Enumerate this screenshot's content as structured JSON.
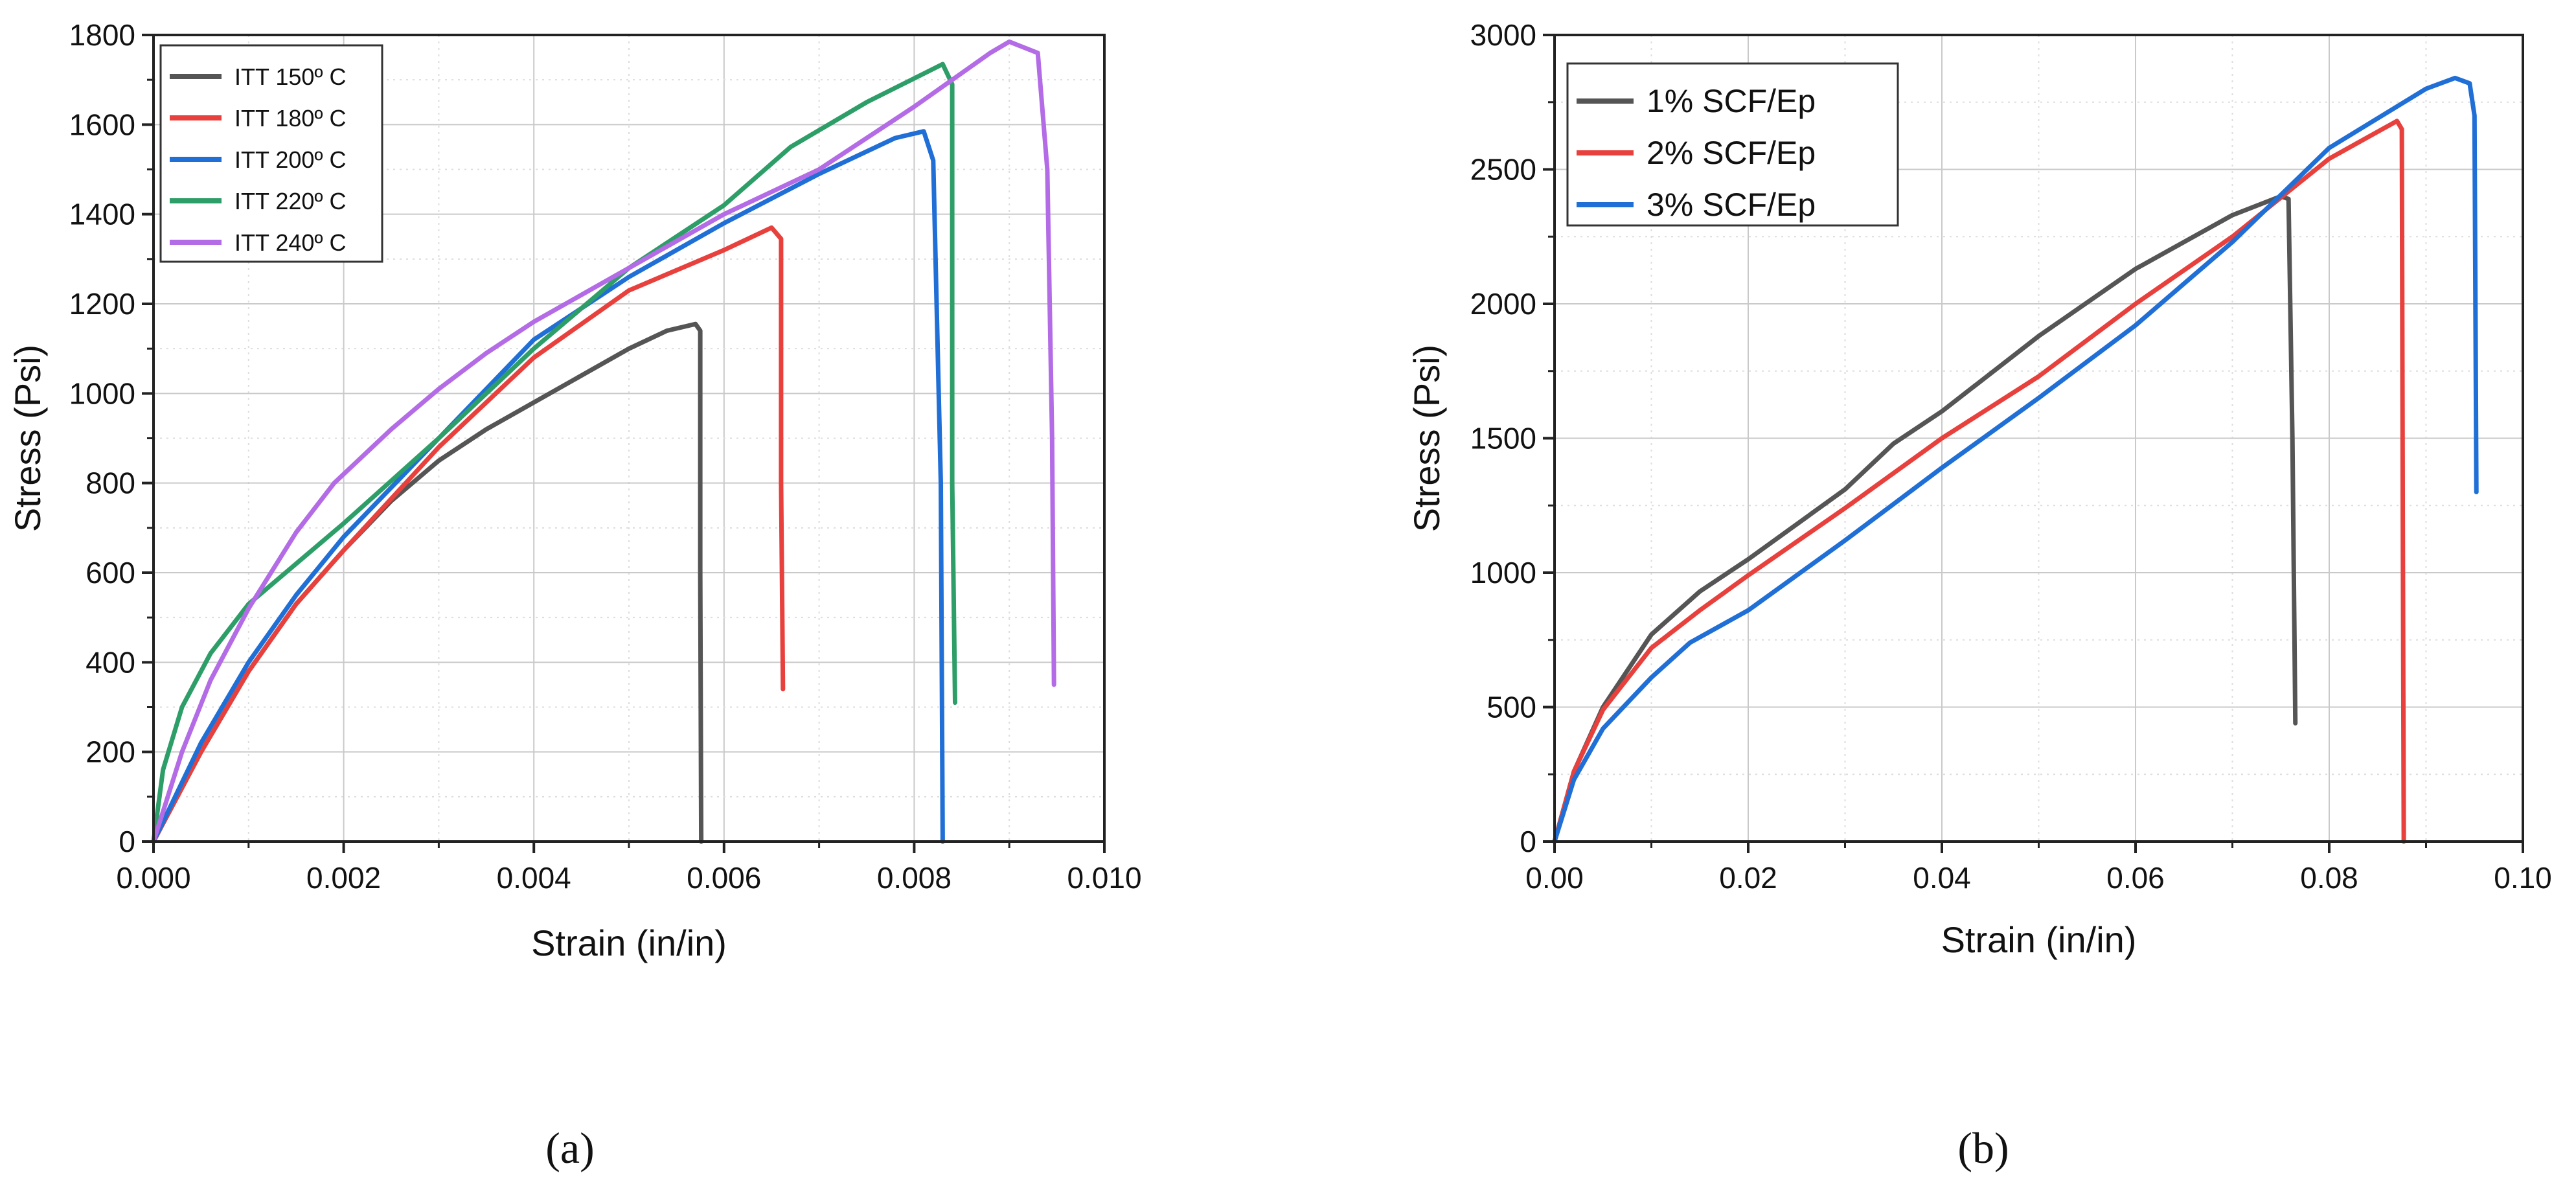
{
  "chart_data": [
    {
      "type": "line",
      "panel_label": "(a)",
      "xlabel": "Strain (in/in)",
      "ylabel": "Stress (Psi)",
      "xlim": [
        0,
        0.01
      ],
      "ylim": [
        0,
        1800
      ],
      "x_ticks": [
        "0.000",
        "0.002",
        "0.004",
        "0.006",
        "0.008",
        "0.010"
      ],
      "x_tick_values": [
        0,
        0.002,
        0.004,
        0.006,
        0.008,
        0.01
      ],
      "y_ticks": [
        "0",
        "200",
        "400",
        "600",
        "800",
        "1000",
        "1200",
        "1400",
        "1600",
        "1800"
      ],
      "y_tick_values": [
        0,
        200,
        400,
        600,
        800,
        1000,
        1200,
        1400,
        1600,
        1800
      ],
      "grid": true,
      "legend_position": "top-left",
      "series": [
        {
          "name": "ITT 150º C",
          "color": "#555555",
          "x": [
            0,
            0.0005,
            0.001,
            0.0015,
            0.002,
            0.0025,
            0.003,
            0.0035,
            0.004,
            0.0045,
            0.005,
            0.0054,
            0.0057,
            0.00575,
            0.00575,
            0.00576
          ],
          "y": [
            0,
            200,
            380,
            530,
            650,
            760,
            850,
            920,
            980,
            1040,
            1100,
            1140,
            1155,
            1140,
            600,
            0
          ]
        },
        {
          "name": "ITT 180º C",
          "color": "#e8403c",
          "x": [
            0,
            0.0005,
            0.001,
            0.0015,
            0.002,
            0.003,
            0.004,
            0.005,
            0.006,
            0.0065,
            0.0066,
            0.0066,
            0.00662
          ],
          "y": [
            0,
            200,
            380,
            530,
            650,
            880,
            1080,
            1230,
            1320,
            1370,
            1345,
            800,
            340
          ]
        },
        {
          "name": "ITT 200º C",
          "color": "#1f6fd6",
          "x": [
            0,
            0.0005,
            0.001,
            0.0015,
            0.002,
            0.003,
            0.004,
            0.005,
            0.006,
            0.007,
            0.0078,
            0.0081,
            0.0082,
            0.00828,
            0.0083
          ],
          "y": [
            0,
            220,
            400,
            550,
            680,
            900,
            1120,
            1260,
            1380,
            1490,
            1570,
            1585,
            1520,
            800,
            0
          ]
        },
        {
          "name": "ITT 220º C",
          "color": "#2e9e68",
          "x": [
            0,
            0.0001,
            0.0003,
            0.0006,
            0.001,
            0.0015,
            0.002,
            0.003,
            0.004,
            0.005,
            0.006,
            0.0067,
            0.0075,
            0.0083,
            0.0084,
            0.0084,
            0.00843
          ],
          "y": [
            0,
            160,
            300,
            420,
            530,
            620,
            710,
            900,
            1100,
            1280,
            1420,
            1550,
            1650,
            1735,
            1690,
            800,
            310
          ]
        },
        {
          "name": "ITT 240º C",
          "color": "#b46be6",
          "x": [
            0,
            0.0003,
            0.0006,
            0.001,
            0.0015,
            0.0019,
            0.0025,
            0.003,
            0.0035,
            0.004,
            0.005,
            0.006,
            0.007,
            0.008,
            0.0088,
            0.009,
            0.0093,
            0.0094,
            0.00945,
            0.00947
          ],
          "y": [
            0,
            200,
            360,
            520,
            690,
            800,
            920,
            1010,
            1090,
            1160,
            1280,
            1400,
            1500,
            1640,
            1760,
            1785,
            1760,
            1500,
            900,
            350
          ]
        }
      ]
    },
    {
      "type": "line",
      "panel_label": "(b)",
      "xlabel": "Strain (in/in)",
      "ylabel": "Stress (Psi)",
      "xlim": [
        0,
        0.1
      ],
      "ylim": [
        0,
        3000
      ],
      "x_ticks": [
        "0.00",
        "0.02",
        "0.04",
        "0.06",
        "0.08",
        "0.10"
      ],
      "x_tick_values": [
        0,
        0.02,
        0.04,
        0.06,
        0.08,
        0.1
      ],
      "y_ticks": [
        "0",
        "500",
        "1000",
        "1500",
        "2000",
        "2500",
        "3000"
      ],
      "y_tick_values": [
        0,
        500,
        1000,
        1500,
        2000,
        2500,
        3000
      ],
      "grid": true,
      "legend_position": "top-left",
      "series": [
        {
          "name": "1% SCF/Ep",
          "color": "#555555",
          "x": [
            0,
            0.002,
            0.005,
            0.01,
            0.015,
            0.02,
            0.03,
            0.035,
            0.04,
            0.05,
            0.06,
            0.07,
            0.075,
            0.0758,
            0.0762,
            0.0765
          ],
          "y": [
            0,
            260,
            500,
            770,
            930,
            1050,
            1310,
            1480,
            1600,
            1880,
            2130,
            2330,
            2400,
            2390,
            1500,
            440
          ]
        },
        {
          "name": "2% SCF/Ep",
          "color": "#e8403c",
          "x": [
            0,
            0.002,
            0.005,
            0.01,
            0.015,
            0.02,
            0.03,
            0.04,
            0.05,
            0.06,
            0.07,
            0.08,
            0.087,
            0.0875,
            0.0876,
            0.0877
          ],
          "y": [
            0,
            260,
            490,
            720,
            860,
            990,
            1240,
            1500,
            1730,
            2000,
            2250,
            2540,
            2680,
            2650,
            1200,
            0
          ]
        },
        {
          "name": "3% SCF/Ep",
          "color": "#1f6fd6",
          "x": [
            0,
            0.002,
            0.005,
            0.01,
            0.014,
            0.02,
            0.03,
            0.04,
            0.05,
            0.06,
            0.07,
            0.08,
            0.09,
            0.093,
            0.0945,
            0.095,
            0.0952
          ],
          "y": [
            0,
            230,
            420,
            610,
            740,
            860,
            1120,
            1390,
            1650,
            1920,
            2230,
            2580,
            2800,
            2840,
            2820,
            2700,
            1300
          ]
        }
      ]
    }
  ]
}
